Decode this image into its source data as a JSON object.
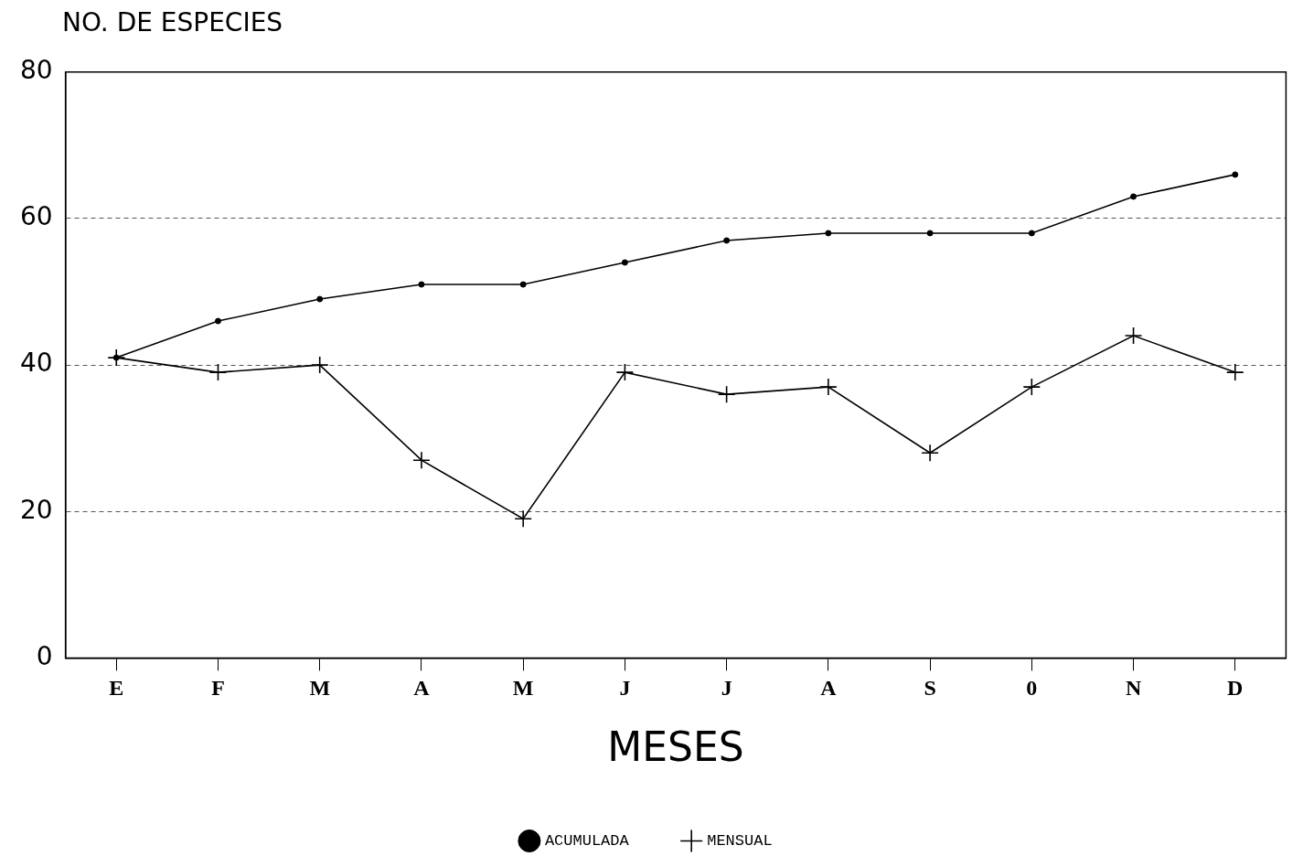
{
  "chart_data": {
    "type": "line",
    "ylabel": "NO. DE ESPECIES",
    "xlabel": "MESES",
    "categories": [
      "E",
      "F",
      "M",
      "A",
      "M",
      "J",
      "J",
      "A",
      "S",
      "0",
      "N",
      "D"
    ],
    "series": [
      {
        "name": "ACUMULADA",
        "color": "#000000",
        "marker": "circle",
        "values": [
          41,
          46,
          49,
          51,
          51,
          54,
          57,
          58,
          58,
          58,
          63,
          66
        ]
      },
      {
        "name": "MENSUAL",
        "color": "#000000",
        "marker": "cross",
        "values": [
          41,
          39,
          40,
          27,
          19,
          39,
          36,
          37,
          28,
          37,
          44,
          39
        ]
      }
    ],
    "ylim": [
      0,
      80
    ],
    "yticks": [
      0,
      20,
      40,
      60,
      80
    ],
    "grid": "y",
    "legend": "bottom"
  }
}
